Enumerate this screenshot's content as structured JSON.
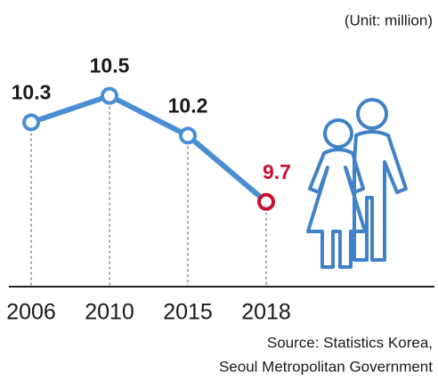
{
  "chart_data": {
    "type": "line",
    "unit": "(Unit: million)",
    "categories": [
      "2006",
      "2010",
      "2015",
      "2018"
    ],
    "series": [
      {
        "color": "#4a8ed2",
        "highlight_color": "#c8102e",
        "values": [
          10.3,
          10.5,
          10.2,
          9.7
        ]
      }
    ],
    "ylim": [
      9,
      10.8
    ],
    "source": [
      "Source: Statistics Korea,",
      "Seoul Metropolitan Government"
    ]
  }
}
